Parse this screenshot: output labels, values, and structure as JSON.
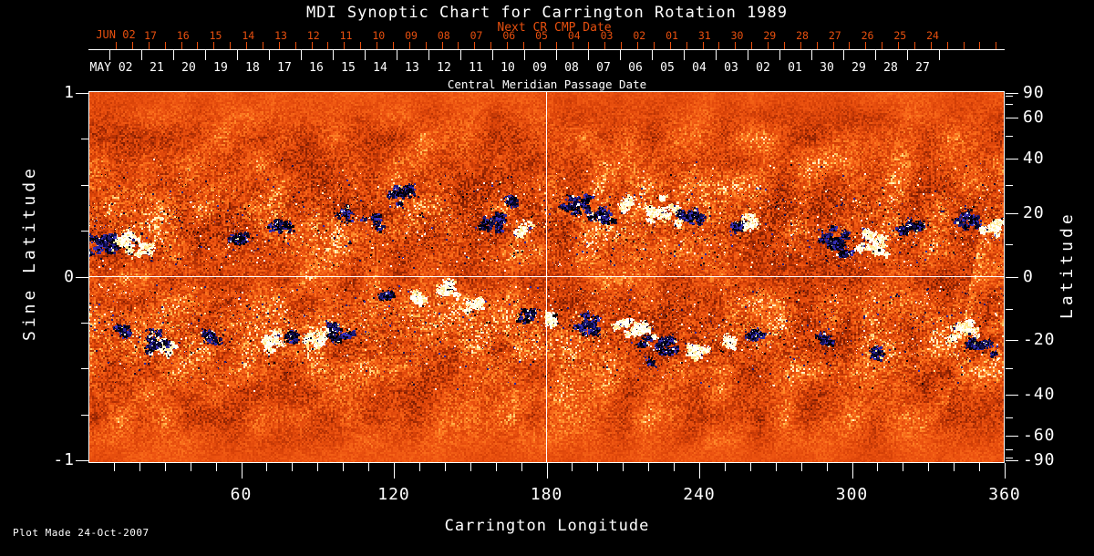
{
  "title": "MDI Synoptic Chart for Carrington Rotation 1989",
  "footer": {
    "plot_made": "Plot Made 24-Oct-2007"
  },
  "colors": {
    "background": "#000000",
    "axis": "#ffffff",
    "next_cr_accent": "#e8500f",
    "quiet_sun": "#ec5210",
    "negative_polarity": "#10104e",
    "positive_polarity": "#fffdf0",
    "bright_fringe": "#ffc45c"
  },
  "top_axis": {
    "next_cr_label": "Next CR CMP Date",
    "next_month_label": "JUN 02",
    "next_days": [
      "17",
      "16",
      "15",
      "14",
      "13",
      "12",
      "11",
      "10",
      "09",
      "08",
      "07",
      "06",
      "05",
      "04",
      "03",
      "02",
      "01",
      "31",
      "30",
      "29",
      "28",
      "27",
      "26",
      "25",
      "24"
    ],
    "cmp_label": "Central Meridian Passage Date",
    "cmp_month_label": "MAY 02",
    "cmp_days": [
      "21",
      "20",
      "19",
      "18",
      "17",
      "16",
      "15",
      "14",
      "13",
      "12",
      "11",
      "10",
      "09",
      "08",
      "07",
      "06",
      "05",
      "04",
      "03",
      "02",
      "01",
      "30",
      "29",
      "28",
      "27"
    ]
  },
  "left_axis": {
    "label": "Sine Latitude",
    "tick_labels": [
      "1",
      "0",
      "-1"
    ],
    "tick_values": [
      1,
      0,
      -1
    ],
    "minor_step": 0.25
  },
  "right_axis": {
    "label": "Latitude",
    "tick_labels": [
      "90",
      "60",
      "40",
      "20",
      "0",
      "-20",
      "-40",
      "-60",
      "-90"
    ],
    "tick_values_deg": [
      90,
      60,
      40,
      20,
      0,
      -20,
      -40,
      -60,
      -90
    ],
    "minor_step_deg": 10
  },
  "bottom_axis": {
    "label": "Carrington Longitude",
    "tick_labels": [
      "60",
      "120",
      "180",
      "240",
      "300",
      "360"
    ],
    "tick_values_deg": [
      60,
      120,
      180,
      240,
      300,
      360
    ],
    "minor_step_deg": 10,
    "range_deg": [
      0,
      360
    ]
  },
  "chart_data": {
    "type": "heatmap",
    "title": "MDI Synoptic Chart for Carrington Rotation 1989",
    "description": "SOHO/MDI photospheric magnetic field synoptic map for Carrington rotation 1989 (May 2002). Mottled orange-red background is the quiet-Sun field; dark navy/black patches are negative magnetic polarity; white/yellow patches are positive polarity. White crosshair marks Carrington longitude 180 and the solar equator.",
    "xlabel": "Carrington Longitude",
    "ylabel": "Sine Latitude",
    "ylabel_right": "Latitude",
    "x_range": [
      0,
      360
    ],
    "y_range": [
      -1,
      1
    ],
    "crosshair": {
      "longitude_deg": 180,
      "sine_latitude": 0
    },
    "activity_bands_sine_latitude": [
      [
        0.1,
        0.55
      ],
      [
        -0.55,
        -0.1
      ]
    ],
    "active_regions": [
      {
        "lon": 8,
        "sin_lat": 0.18,
        "polarity": "negative",
        "strength": 3
      },
      {
        "lon": 18,
        "sin_lat": 0.19,
        "polarity": "positive",
        "strength": 3
      },
      {
        "lon": 30,
        "sin_lat": -0.38,
        "polarity": "positive",
        "strength": 2
      },
      {
        "lon": 26,
        "sin_lat": -0.34,
        "polarity": "negative",
        "strength": 2
      },
      {
        "lon": 14,
        "sin_lat": -0.3,
        "polarity": "negative",
        "strength": 1
      },
      {
        "lon": 48,
        "sin_lat": -0.33,
        "polarity": "negative",
        "strength": 1
      },
      {
        "lon": 58,
        "sin_lat": 0.22,
        "polarity": "negative",
        "strength": 1
      },
      {
        "lon": 72,
        "sin_lat": -0.36,
        "polarity": "positive",
        "strength": 2
      },
      {
        "lon": 80,
        "sin_lat": -0.32,
        "polarity": "negative",
        "strength": 1
      },
      {
        "lon": 89,
        "sin_lat": -0.33,
        "polarity": "positive",
        "strength": 2
      },
      {
        "lon": 97,
        "sin_lat": -0.3,
        "polarity": "negative",
        "strength": 2
      },
      {
        "lon": 75,
        "sin_lat": 0.28,
        "polarity": "negative",
        "strength": 1
      },
      {
        "lon": 100,
        "sin_lat": 0.35,
        "polarity": "negative",
        "strength": 1
      },
      {
        "lon": 112,
        "sin_lat": 0.3,
        "polarity": "negative",
        "strength": 1
      },
      {
        "lon": 123,
        "sin_lat": 0.46,
        "polarity": "negative",
        "strength": 2
      },
      {
        "lon": 118,
        "sin_lat": -0.1,
        "polarity": "negative",
        "strength": 1
      },
      {
        "lon": 130,
        "sin_lat": -0.12,
        "polarity": "positive",
        "strength": 1
      },
      {
        "lon": 141,
        "sin_lat": -0.07,
        "polarity": "positive",
        "strength": 2
      },
      {
        "lon": 150,
        "sin_lat": -0.16,
        "polarity": "positive",
        "strength": 1
      },
      {
        "lon": 160,
        "sin_lat": 0.3,
        "polarity": "negative",
        "strength": 2
      },
      {
        "lon": 166,
        "sin_lat": 0.42,
        "polarity": "negative",
        "strength": 1
      },
      {
        "lon": 170,
        "sin_lat": 0.25,
        "polarity": "positive",
        "strength": 1
      },
      {
        "lon": 173,
        "sin_lat": -0.2,
        "polarity": "negative",
        "strength": 1
      },
      {
        "lon": 181,
        "sin_lat": -0.23,
        "polarity": "positive",
        "strength": 1
      },
      {
        "lon": 193,
        "sin_lat": 0.4,
        "polarity": "negative",
        "strength": 2
      },
      {
        "lon": 202,
        "sin_lat": 0.33,
        "polarity": "negative",
        "strength": 2
      },
      {
        "lon": 212,
        "sin_lat": 0.4,
        "polarity": "positive",
        "strength": 1
      },
      {
        "lon": 223,
        "sin_lat": 0.36,
        "polarity": "positive",
        "strength": 3
      },
      {
        "lon": 236,
        "sin_lat": 0.33,
        "polarity": "negative",
        "strength": 2
      },
      {
        "lon": 255,
        "sin_lat": 0.28,
        "polarity": "negative",
        "strength": 1
      },
      {
        "lon": 259,
        "sin_lat": 0.3,
        "polarity": "positive",
        "strength": 1
      },
      {
        "lon": 195,
        "sin_lat": -0.26,
        "polarity": "negative",
        "strength": 2
      },
      {
        "lon": 214,
        "sin_lat": -0.28,
        "polarity": "positive",
        "strength": 3
      },
      {
        "lon": 224,
        "sin_lat": -0.38,
        "polarity": "negative",
        "strength": 3
      },
      {
        "lon": 239,
        "sin_lat": -0.4,
        "polarity": "positive",
        "strength": 2
      },
      {
        "lon": 252,
        "sin_lat": -0.35,
        "polarity": "positive",
        "strength": 1
      },
      {
        "lon": 263,
        "sin_lat": -0.32,
        "polarity": "negative",
        "strength": 1
      },
      {
        "lon": 293,
        "sin_lat": 0.19,
        "polarity": "negative",
        "strength": 3
      },
      {
        "lon": 308,
        "sin_lat": 0.2,
        "polarity": "positive",
        "strength": 3
      },
      {
        "lon": 322,
        "sin_lat": 0.27,
        "polarity": "negative",
        "strength": 2
      },
      {
        "lon": 345,
        "sin_lat": 0.31,
        "polarity": "negative",
        "strength": 2
      },
      {
        "lon": 355,
        "sin_lat": 0.28,
        "polarity": "positive",
        "strength": 2
      },
      {
        "lon": 343,
        "sin_lat": -0.28,
        "polarity": "positive",
        "strength": 2
      },
      {
        "lon": 349,
        "sin_lat": -0.36,
        "polarity": "negative",
        "strength": 2
      },
      {
        "lon": 290,
        "sin_lat": -0.35,
        "polarity": "negative",
        "strength": 1
      },
      {
        "lon": 310,
        "sin_lat": -0.42,
        "polarity": "negative",
        "strength": 1
      }
    ]
  }
}
